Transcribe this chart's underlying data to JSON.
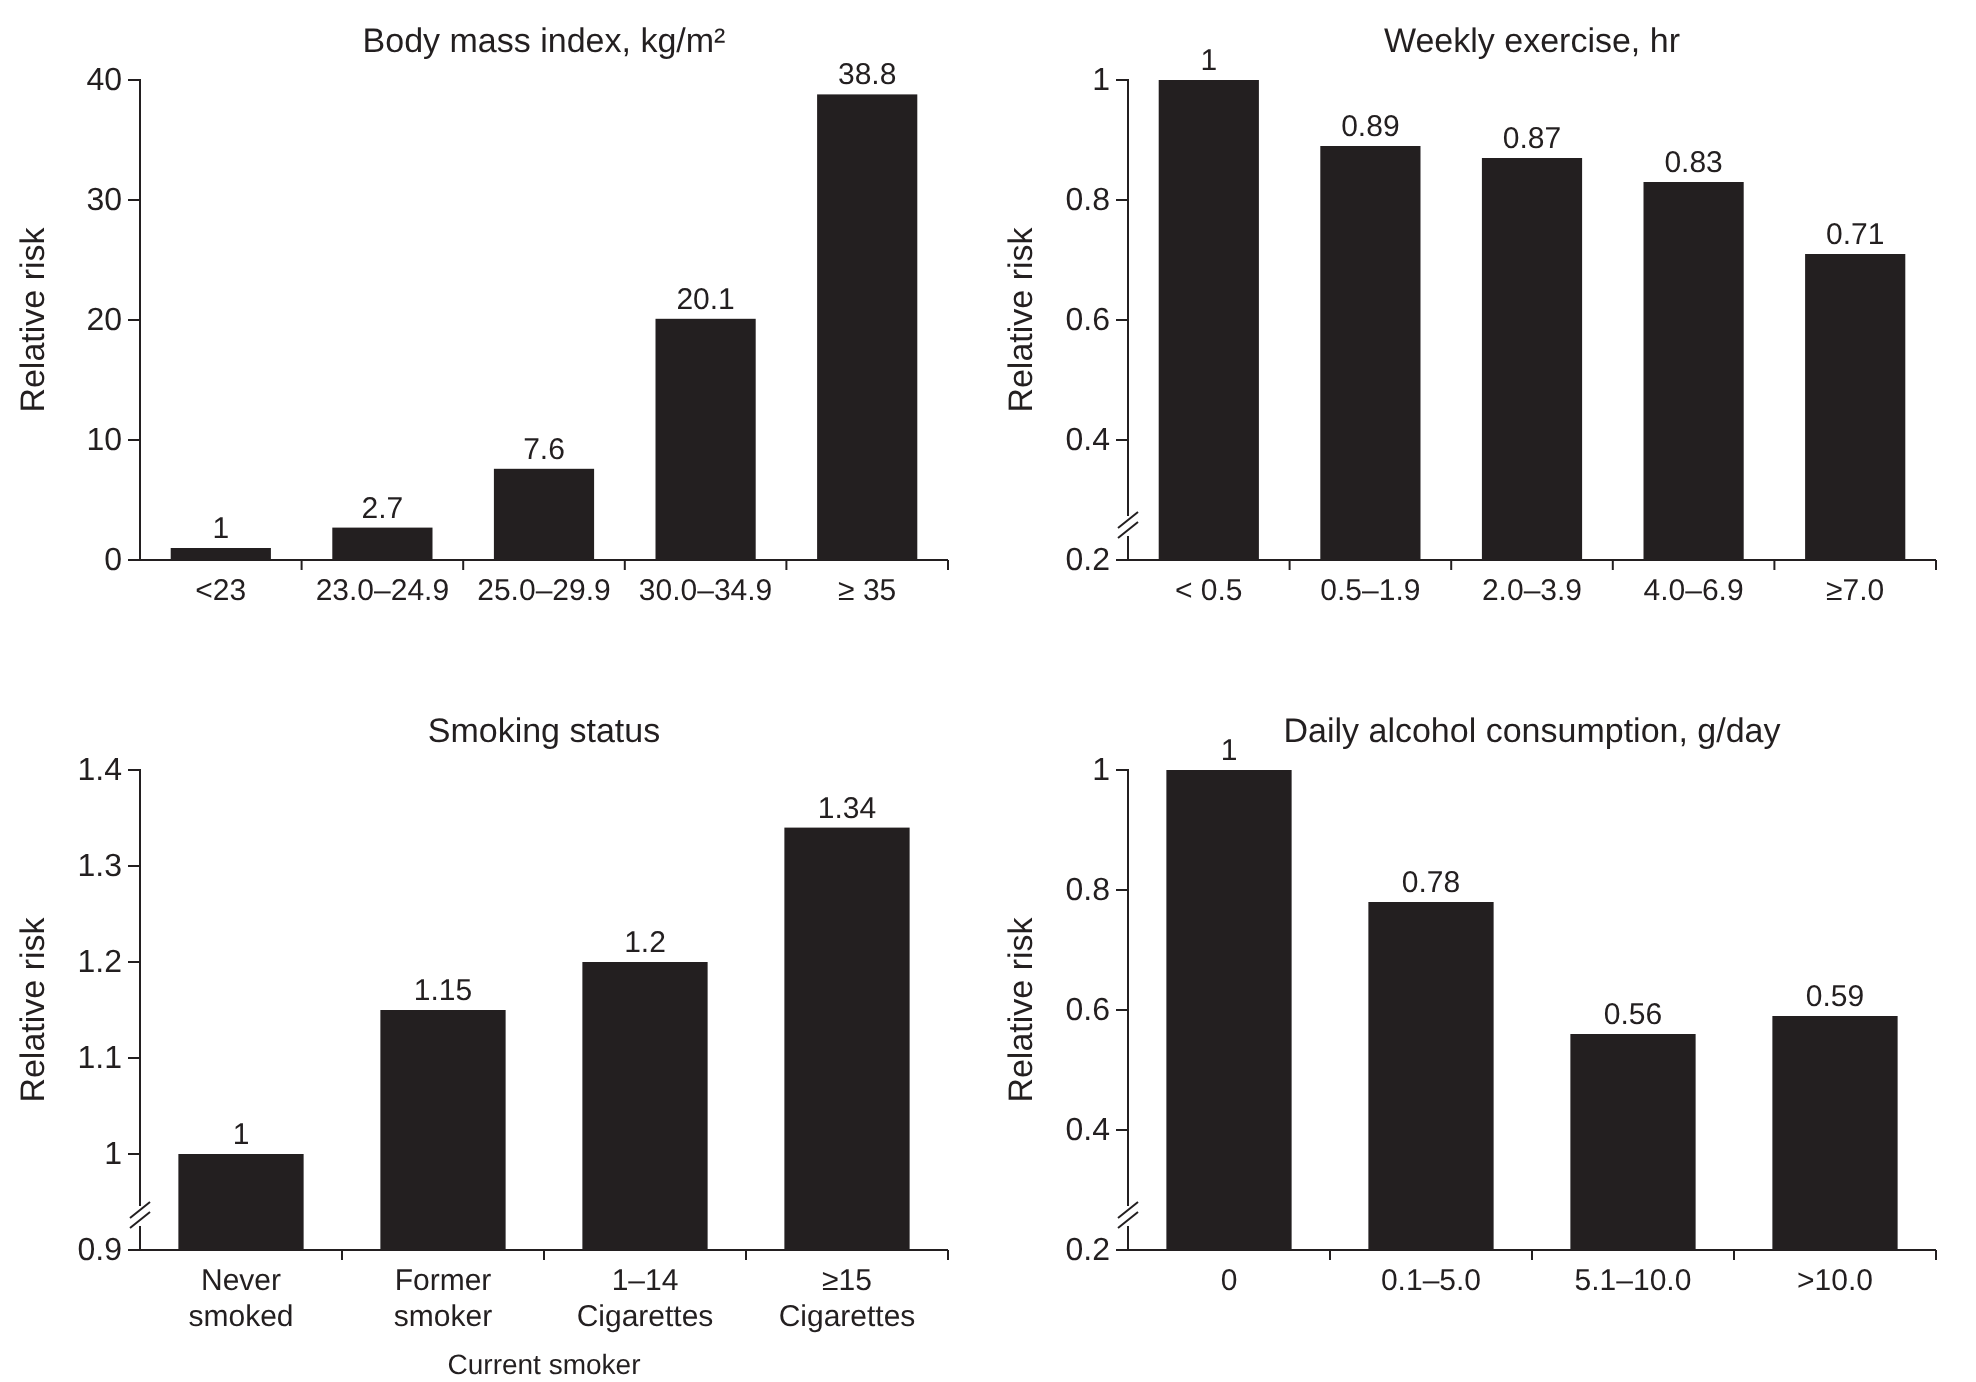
{
  "chart_data": [
    {
      "type": "bar",
      "title": "Body mass index, kg/m²",
      "ylabel": "Relative risk",
      "categories": [
        "<23",
        "23.0–24.9",
        "25.0–29.9",
        "30.0–34.9",
        "≥ 35"
      ],
      "values": [
        1,
        2.7,
        7.6,
        20.1,
        38.8
      ],
      "color": "#231f20",
      "ylim": [
        0,
        40
      ],
      "yticks": [
        0,
        10,
        20,
        30,
        40
      ],
      "data_labels": true
    },
    {
      "type": "bar",
      "title": "Weekly exercise, hr",
      "ylabel": "Relative risk",
      "categories": [
        "< 0.5",
        "0.5–1.9",
        "2.0–3.9",
        "4.0–6.9",
        "≥7.0"
      ],
      "values": [
        1,
        0.89,
        0.87,
        0.83,
        0.71
      ],
      "color": "#231f20",
      "ylim": [
        0.2,
        1
      ],
      "yticks": [
        0.2,
        0.4,
        0.6,
        0.8,
        1
      ],
      "data_labels": true
    },
    {
      "type": "bar",
      "title": "Smoking status",
      "ylabel": "Relative risk",
      "xlabel": "Current smoker",
      "categories": [
        "Never smoked",
        "Former smoker",
        "1–14 Cigarettes",
        "≥15 Cigarettes"
      ],
      "values": [
        1,
        1.15,
        1.2,
        1.34
      ],
      "color": "#231f20",
      "ylim": [
        0.9,
        1.4
      ],
      "yticks": [
        0.9,
        1,
        1.1,
        1.2,
        1.3,
        1.4
      ],
      "data_labels": true
    },
    {
      "type": "bar",
      "title": "Daily alcohol consumption, g/day",
      "ylabel": "Relative risk",
      "categories": [
        "0",
        "0.1–5.0",
        "5.1–10.0",
        ">10.0"
      ],
      "values": [
        1,
        0.78,
        0.56,
        0.59
      ],
      "color": "#231f20",
      "ylim": [
        0.2,
        1
      ],
      "yticks": [
        0.2,
        0.4,
        0.6,
        0.8,
        1
      ],
      "data_labels": true
    }
  ]
}
